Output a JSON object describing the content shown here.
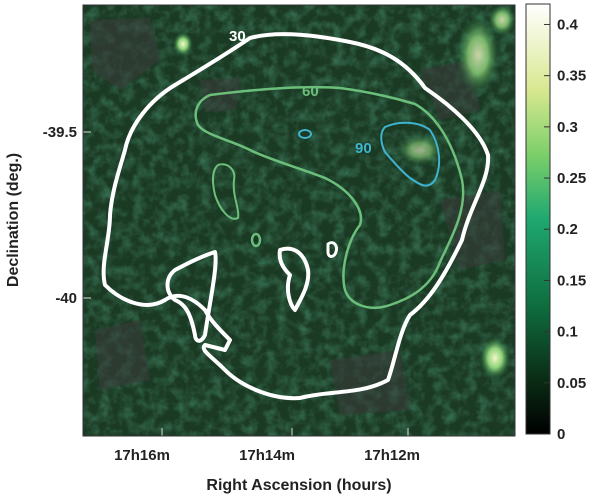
{
  "chart_data": {
    "type": "heatmap",
    "title": "",
    "xlabel": "Right Ascension (hours)",
    "ylabel": "Declination (deg.)",
    "x_ticks": [
      {
        "label": "17h16m",
        "ra_min": 16
      },
      {
        "label": "17h14m",
        "ra_min": 14
      },
      {
        "label": "17h12m",
        "ra_min": 12
      }
    ],
    "y_ticks": [
      {
        "label": "-39.5",
        "dec": -39.5
      },
      {
        "label": "-40",
        "dec": -40.0
      }
    ],
    "colorbar": {
      "colormap": "black-green-yellow-white",
      "range": [
        0,
        0.42
      ],
      "ticks": [
        {
          "label": "0",
          "value": 0
        },
        {
          "label": "0.05",
          "value": 0.05
        },
        {
          "label": "0.1",
          "value": 0.1
        },
        {
          "label": "0.15",
          "value": 0.15
        },
        {
          "label": "0.2",
          "value": 0.2
        },
        {
          "label": "0.25",
          "value": 0.25
        },
        {
          "label": "0.3",
          "value": 0.3
        },
        {
          "label": "0.35",
          "value": 0.35
        },
        {
          "label": "0.4",
          "value": 0.4
        }
      ]
    },
    "contours": [
      {
        "level": "30",
        "color": "#ffffff"
      },
      {
        "level": "60",
        "color": "#6cbf7a"
      },
      {
        "level": "90",
        "color": "#3fb4d0"
      }
    ]
  }
}
